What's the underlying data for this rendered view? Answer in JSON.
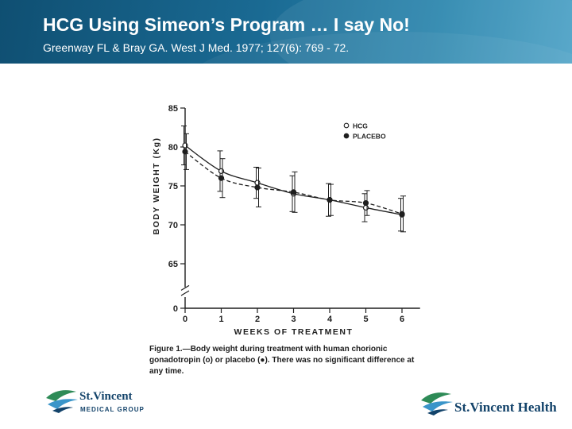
{
  "slide": {
    "title": "HCG Using Simeon’s Program … I say No!",
    "subtitle": "Greenway FL & Bray GA. West J Med. 1977; 127(6): 769 - 72."
  },
  "figure": {
    "caption_label": "Figure 1.",
    "caption_text": "—Body weight during treatment with human chorionic gonadotropin (o) or placebo (●). There was no significant difference at any time."
  },
  "chart_data": {
    "type": "line",
    "xlabel": "WEEKS OF TREATMENT",
    "ylabel": "BODY WEIGHT (Kg)",
    "x": [
      0,
      1,
      2,
      3,
      4,
      5,
      6
    ],
    "x_ticks": [
      "0",
      "1",
      "2",
      "3",
      "4",
      "5",
      "6"
    ],
    "y_ticks": [
      "0",
      "65",
      "70",
      "75",
      "80",
      "85"
    ],
    "ylim": [
      0,
      85
    ],
    "y_axis_break": true,
    "legend_position": "top-right",
    "series": [
      {
        "name": "HCG",
        "marker": "open-circle",
        "line_style": "solid",
        "values": [
          80.2,
          76.9,
          75.4,
          74.0,
          73.2,
          72.2,
          71.3
        ],
        "error": [
          2.5,
          2.6,
          2.0,
          2.3,
          2.1,
          1.8,
          2.1
        ]
      },
      {
        "name": "PLACEBO",
        "marker": "filled-circle",
        "line_style": "dashed",
        "values": [
          79.4,
          76.0,
          74.8,
          74.2,
          73.2,
          72.8,
          71.4
        ],
        "error": [
          2.3,
          2.5,
          2.5,
          2.6,
          2.0,
          1.6,
          2.3
        ]
      }
    ]
  },
  "footer": {
    "left_logo_main": "St.Vincent",
    "left_logo_sub": "MEDICAL GROUP",
    "right_logo_main": "St.Vincent Health"
  }
}
